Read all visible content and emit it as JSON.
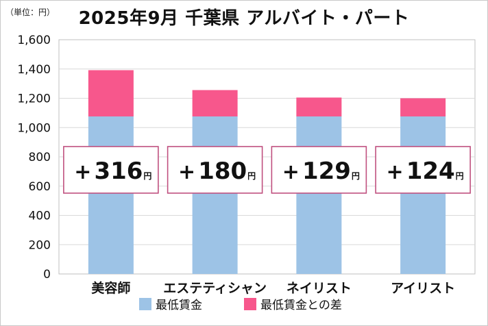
{
  "header": {
    "unit_label": "（単位：円）",
    "title": "2025年9月 千葉県 アルバイト・パート"
  },
  "colors": {
    "base": "#9dc3e6",
    "diff": "#f7578c",
    "box_border": "#c0507f",
    "grid": "#d9d9d9",
    "axis": "#bfbfbf"
  },
  "chart_data": {
    "type": "bar",
    "stacked": true,
    "title": "2025年9月 千葉県 アルバイト・パート",
    "unit": "円",
    "categories": [
      "美容師",
      "エステティシャン",
      "ネイリスト",
      "アイリスト"
    ],
    "series": [
      {
        "name": "最低賃金",
        "values": [
          1076,
          1076,
          1076,
          1076
        ]
      },
      {
        "name": "最低賃金との差",
        "values": [
          316,
          180,
          129,
          124
        ]
      }
    ],
    "annotations": [
      {
        "sign": "+",
        "value": "316",
        "unit": "円"
      },
      {
        "sign": "+",
        "value": "180",
        "unit": "円"
      },
      {
        "sign": "+",
        "value": "129",
        "unit": "円"
      },
      {
        "sign": "+",
        "value": "124",
        "unit": "円"
      }
    ],
    "yticks": [
      "0",
      "200",
      "400",
      "600",
      "800",
      "1,000",
      "1,200",
      "1,400",
      "1,600"
    ],
    "ylim": [
      0,
      1600
    ],
    "legend_position": "bottom"
  }
}
